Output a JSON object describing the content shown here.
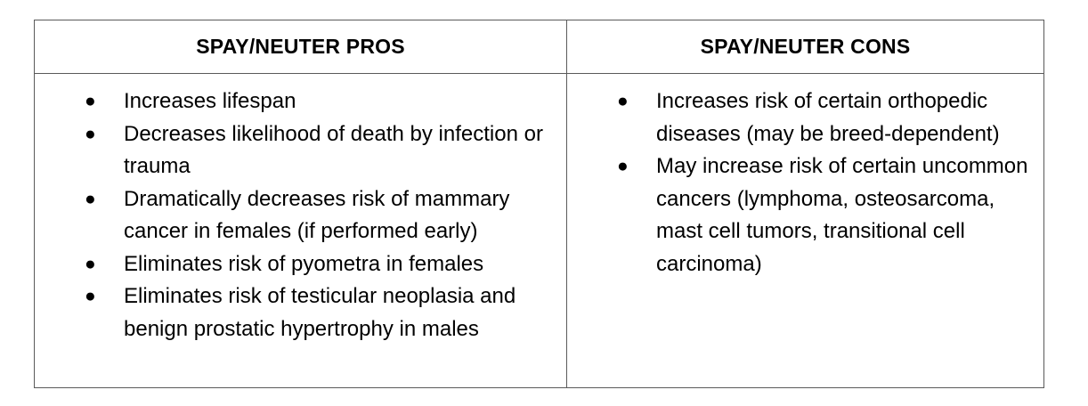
{
  "table": {
    "header_pros": "SPAY/NEUTER PROS",
    "header_cons": "SPAY/NEUTER CONS",
    "bullet_symbol": "●",
    "pros": [
      "Increases lifespan",
      "Decreases likelihood of death by infection or trauma",
      "Dramatically decreases risk of mammary cancer in females (if performed early)",
      "Eliminates risk of pyometra in females",
      "Eliminates risk of testicular neoplasia and benign prostatic hypertrophy in males"
    ],
    "cons": [
      "Increases risk of certain orthopedic diseases (may be breed-dependent)",
      "May increase risk of certain uncommon cancers (lymphoma, osteosarcoma, mast cell tumors, transitional cell carcinoma)"
    ]
  }
}
